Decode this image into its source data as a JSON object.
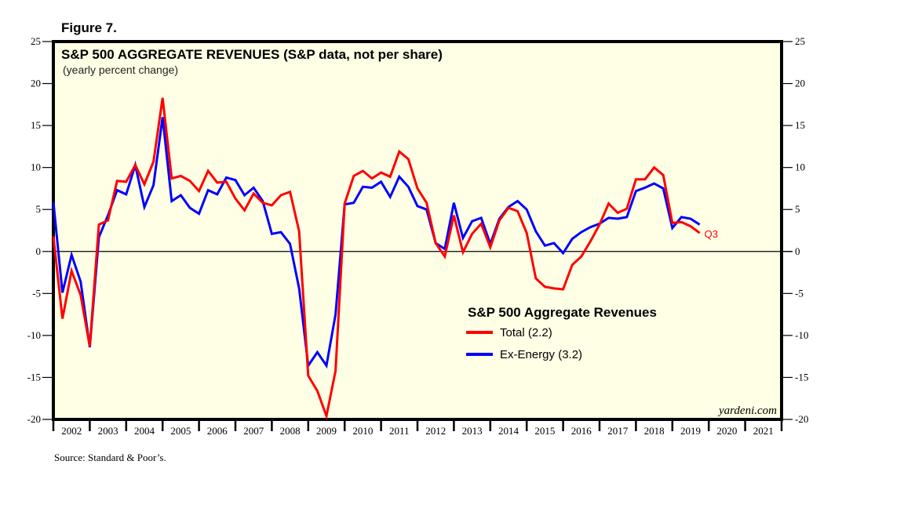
{
  "figure_label": "Figure 7.",
  "source": "Source: Standard & Poor’s.",
  "brand": "yardeni.com",
  "colors": {
    "background": "#ffffe6",
    "total": "#ff0000",
    "ex_energy": "#0000ff",
    "axis": "#000000"
  },
  "chart_data": {
    "type": "line",
    "title": "S&P 500 AGGREGATE REVENUES (S&P data, not per share)",
    "subtitle": "(yearly percent change)",
    "xlabel": "",
    "ylabel": "",
    "frequency": "quarterly",
    "x_start": "2001 Q4",
    "x_end": "2019 Q3",
    "xlim": [
      2002,
      2022
    ],
    "ylim": [
      -20,
      25
    ],
    "y_ticks": [
      25,
      20,
      15,
      10,
      5,
      0,
      -5,
      -10,
      -15,
      -20
    ],
    "x_tick_labels": [
      "2002",
      "2003",
      "2004",
      "2005",
      "2006",
      "2007",
      "2008",
      "2009",
      "2010",
      "2011",
      "2012",
      "2013",
      "2014",
      "2015",
      "2016",
      "2017",
      "2018",
      "2019",
      "2020",
      "2021"
    ],
    "zero_line": true,
    "grid": false,
    "legend": {
      "title": "S&P 500 Aggregate Revenues",
      "placement": "bottom-right",
      "entries": [
        "Total (2.2)",
        "Ex-Energy (3.2)"
      ]
    },
    "annotations": [
      {
        "text": "Q3",
        "series": "Total",
        "at": "2019 Q3"
      }
    ],
    "series": [
      {
        "name": "Total",
        "color": "#ff0000",
        "values": [
          1.8,
          -8.0,
          -2.3,
          -5.2,
          -11.3,
          3.2,
          3.7,
          8.4,
          8.3,
          10.3,
          8.0,
          10.7,
          18.3,
          8.7,
          9.0,
          8.4,
          7.2,
          9.6,
          8.2,
          8.3,
          6.3,
          4.9,
          6.9,
          5.8,
          5.5,
          6.7,
          7.1,
          2.4,
          -14.8,
          -16.6,
          -19.6,
          -14.2,
          5.7,
          9.0,
          9.6,
          8.7,
          9.4,
          8.9,
          11.9,
          11.0,
          7.5,
          5.8,
          1.0,
          -0.6,
          4.3,
          -0.1,
          2.1,
          3.3,
          0.5,
          3.7,
          5.2,
          4.8,
          2.2,
          -3.2,
          -4.2,
          -4.4,
          -4.5,
          -1.6,
          -0.6,
          1.2,
          3.2,
          5.7,
          4.6,
          5.1,
          8.6,
          8.6,
          10.0,
          9.1,
          3.4,
          3.5,
          3.0,
          2.2
        ]
      },
      {
        "name": "Ex-Energy",
        "color": "#0000ff",
        "values": [
          5.9,
          -4.9,
          -0.4,
          -3.6,
          -11.4,
          1.7,
          4.3,
          7.3,
          6.8,
          10.3,
          5.3,
          7.9,
          16.0,
          6.0,
          6.7,
          5.2,
          4.5,
          7.3,
          6.8,
          8.8,
          8.5,
          6.7,
          7.6,
          6.0,
          2.1,
          2.3,
          0.9,
          -4.4,
          -13.6,
          -12.0,
          -13.6,
          -7.5,
          5.6,
          5.8,
          7.7,
          7.6,
          8.3,
          6.5,
          8.9,
          7.7,
          5.4,
          5.0,
          1.0,
          0.3,
          5.8,
          1.6,
          3.6,
          4.0,
          0.9,
          3.9,
          5.3,
          6.0,
          5.0,
          2.4,
          0.7,
          1.0,
          -0.2,
          1.5,
          2.3,
          2.9,
          3.3,
          4.0,
          3.9,
          4.1,
          7.2,
          7.6,
          8.1,
          7.5,
          2.8,
          4.1,
          3.9,
          3.2
        ]
      }
    ]
  }
}
